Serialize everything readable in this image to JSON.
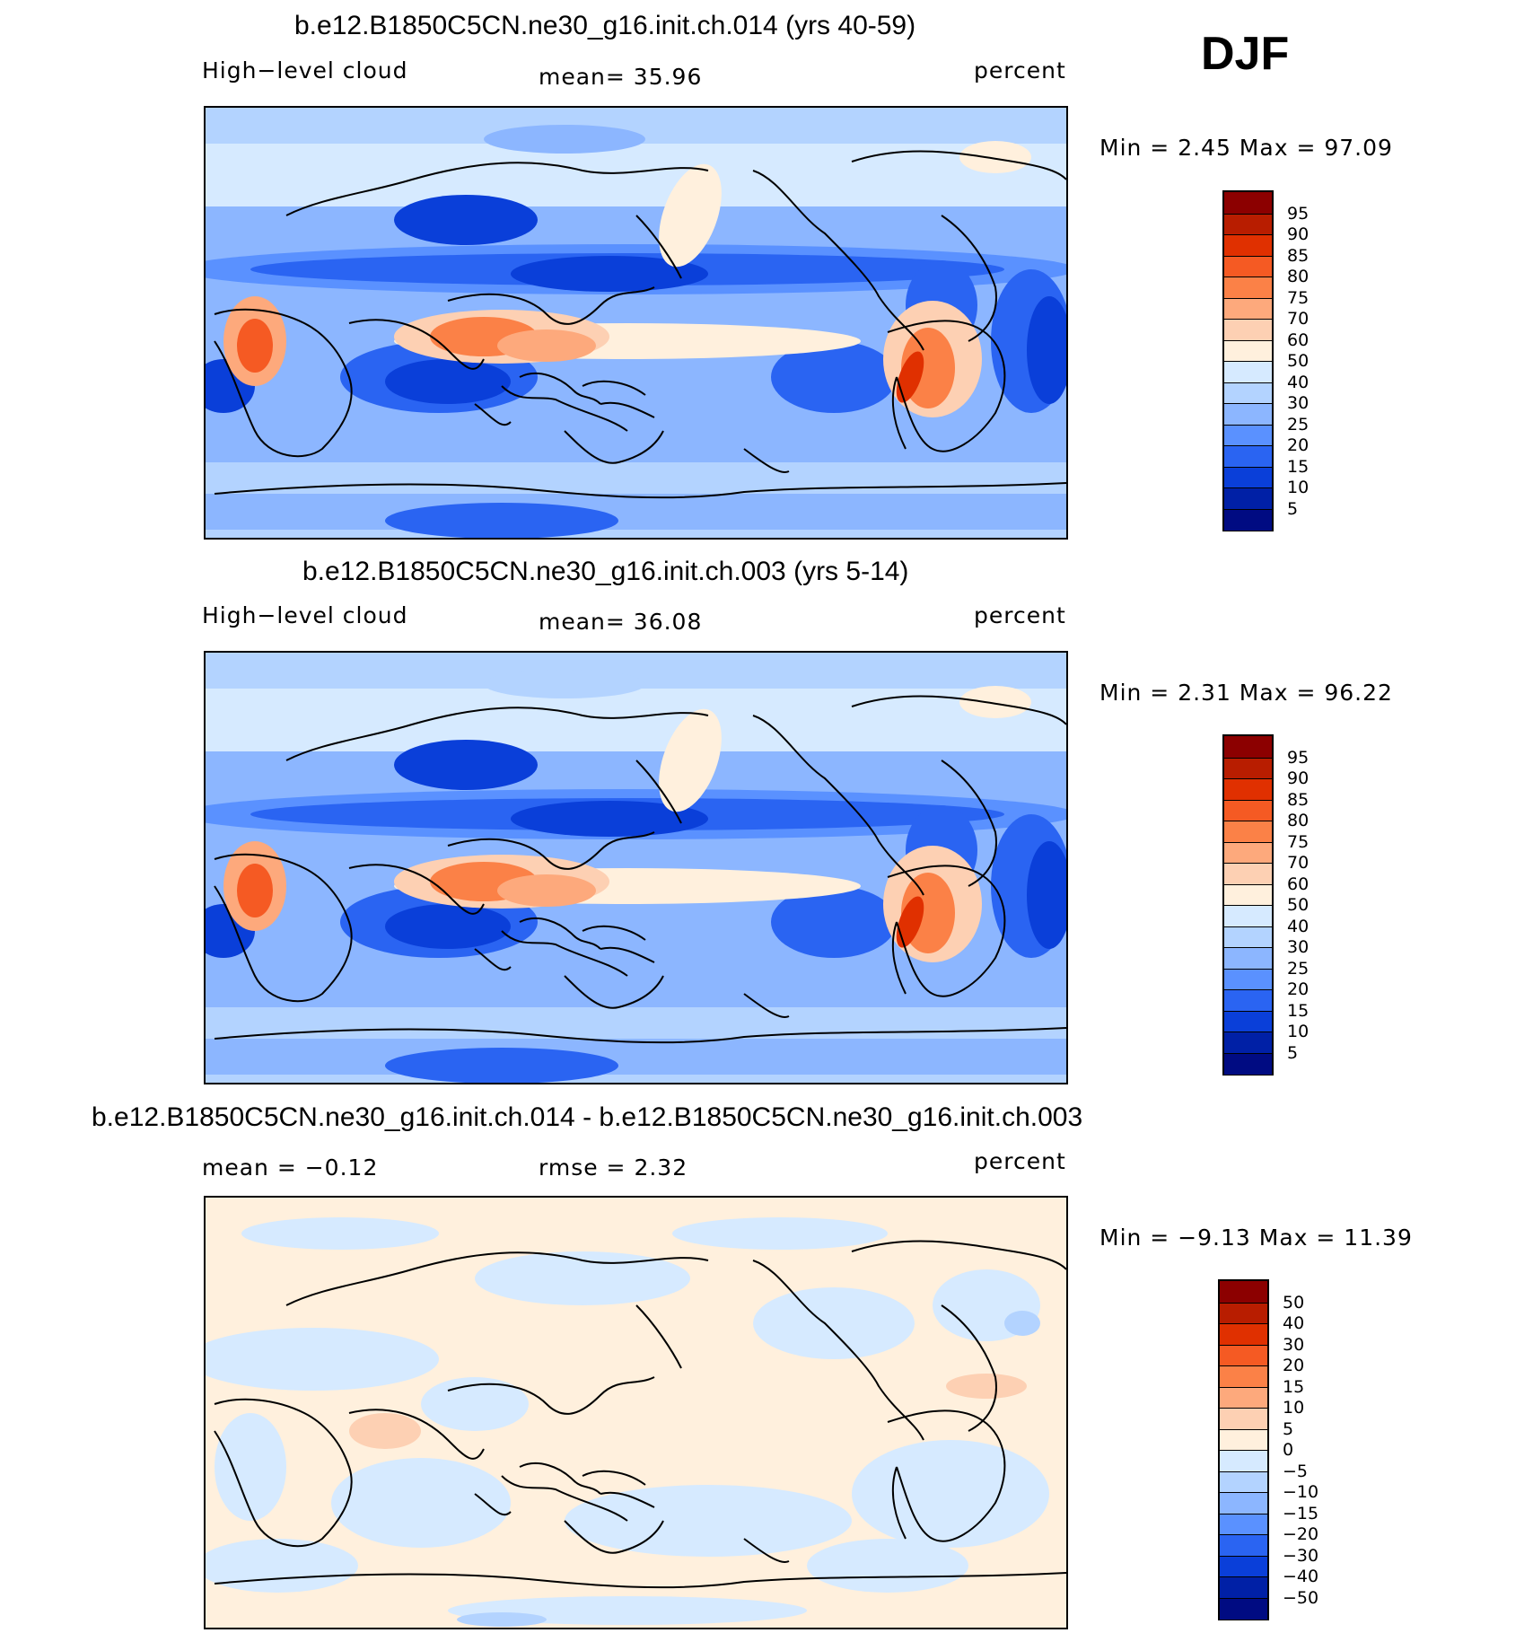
{
  "season": "DJF",
  "panels": [
    {
      "title": "b.e12.B1850C5CN.ne30_g16.init.ch.014 (yrs 40-59)",
      "left_label": "High−level cloud",
      "center_label": "mean=   35.96",
      "right_label": "percent",
      "minmax": "Min =    2.45  Max =   97.09",
      "colorbar": {
        "levels": [
          "95",
          "90",
          "85",
          "80",
          "75",
          "70",
          "60",
          "50",
          "40",
          "30",
          "25",
          "20",
          "15",
          "10",
          "5"
        ],
        "colors": [
          "#8c0000",
          "#b81d00",
          "#e03000",
          "#f55a23",
          "#fb8147",
          "#fda97c",
          "#fdd0b3",
          "#fff0dd",
          "#d6eaff",
          "#b3d3ff",
          "#8cb6ff",
          "#5a91ff",
          "#2a64f2",
          "#0a3fd9",
          "#0020a6",
          "#000b82"
        ]
      }
    },
    {
      "title": "b.e12.B1850C5CN.ne30_g16.init.ch.003 (yrs 5-14)",
      "left_label": "High−level cloud",
      "center_label": "mean=   36.08",
      "right_label": "percent",
      "minmax": "Min =    2.31  Max =   96.22",
      "colorbar": {
        "levels": [
          "95",
          "90",
          "85",
          "80",
          "75",
          "70",
          "60",
          "50",
          "40",
          "30",
          "25",
          "20",
          "15",
          "10",
          "5"
        ],
        "colors": [
          "#8c0000",
          "#b81d00",
          "#e03000",
          "#f55a23",
          "#fb8147",
          "#fda97c",
          "#fdd0b3",
          "#fff0dd",
          "#d6eaff",
          "#b3d3ff",
          "#8cb6ff",
          "#5a91ff",
          "#2a64f2",
          "#0a3fd9",
          "#0020a6",
          "#000b82"
        ]
      }
    },
    {
      "title": "b.e12.B1850C5CN.ne30_g16.init.ch.014 - b.e12.B1850C5CN.ne30_g16.init.ch.003",
      "left_label": "mean =    −0.12",
      "center_label": "rmse =     2.32",
      "right_label": "percent",
      "minmax": "Min =   −9.13  Max =    11.39",
      "colorbar": {
        "levels": [
          "50",
          "40",
          "30",
          "20",
          "15",
          "10",
          "5",
          "0",
          "−5",
          "−10",
          "−15",
          "−20",
          "−30",
          "−40",
          "−50"
        ],
        "colors": [
          "#8c0000",
          "#b81d00",
          "#e03000",
          "#f55a23",
          "#fb8147",
          "#fda97c",
          "#fdd0b3",
          "#fff0dd",
          "#d6eaff",
          "#b3d3ff",
          "#8cb6ff",
          "#5a91ff",
          "#2a64f2",
          "#0a3fd9",
          "#0020a6",
          "#000b82"
        ]
      }
    }
  ]
}
